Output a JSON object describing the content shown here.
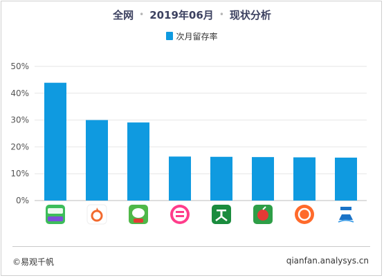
{
  "title": {
    "scope": "全网",
    "period": "2019年06月",
    "topic": "现状分析"
  },
  "legend": {
    "label": "次月留存率"
  },
  "footer": {
    "left": "©易观千帆",
    "right": "qianfan.analysys.cn"
  },
  "colors": {
    "bar": "#0f9ae0",
    "axis_text": "#555555",
    "grid": "#e6e6e6"
  },
  "chart_data": {
    "type": "bar",
    "categories": [
      "app-1",
      "app-2",
      "app-3",
      "app-4",
      "app-5",
      "app-6",
      "app-7",
      "app-8"
    ],
    "series": [
      {
        "name": "次月留存率",
        "values": [
          43.9,
          30.0,
          29.1,
          16.4,
          16.3,
          16.2,
          16.1,
          16.0
        ]
      }
    ],
    "ylim": [
      0,
      50
    ],
    "yticks": [
      "0%",
      "10%",
      "20%",
      "30%",
      "40%",
      "50%"
    ],
    "ytick_values": [
      0,
      10,
      20,
      30,
      40,
      50
    ],
    "grid": true,
    "legend_position": "top-center",
    "category_display": "app-icons",
    "icon_names": [
      "green-app-icon",
      "orange-ring-app-icon",
      "green-mascot-app-icon",
      "pink-circle-app-icon",
      "green-mai-app-icon",
      "green-apple-app-icon",
      "orange-circle-app-icon",
      "boat-logo-app-icon"
    ]
  }
}
